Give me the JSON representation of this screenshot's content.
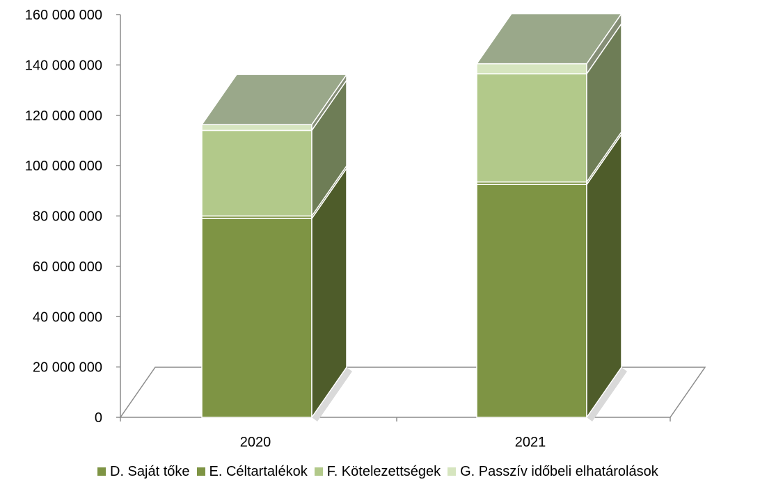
{
  "chart_data": {
    "type": "bar",
    "stacked": true,
    "three_d": true,
    "categories": [
      "2020",
      "2021"
    ],
    "series": [
      {
        "name": "D. Saját tőke",
        "values": [
          79000000,
          92500000
        ],
        "color": "#7e9444"
      },
      {
        "name": "E. Céltartalékok",
        "values": [
          1000000,
          1000000
        ],
        "color": "#7e9444"
      },
      {
        "name": "F. Kötelezettségek",
        "values": [
          34000000,
          43000000
        ],
        "color": "#b2c98a"
      },
      {
        "name": "G. Passzív időbeli elhatárolások",
        "values": [
          2300000,
          4000000
        ],
        "color": "#d6e5bf"
      }
    ],
    "y_ticks": [
      "0",
      "20 000 000",
      "40 000 000",
      "60 000 000",
      "80 000 000",
      "100 000 000",
      "120 000 000",
      "140 000 000",
      "160 000 000"
    ],
    "ylim": [
      0,
      160000000
    ],
    "grid": false,
    "legend_position": "bottom"
  }
}
